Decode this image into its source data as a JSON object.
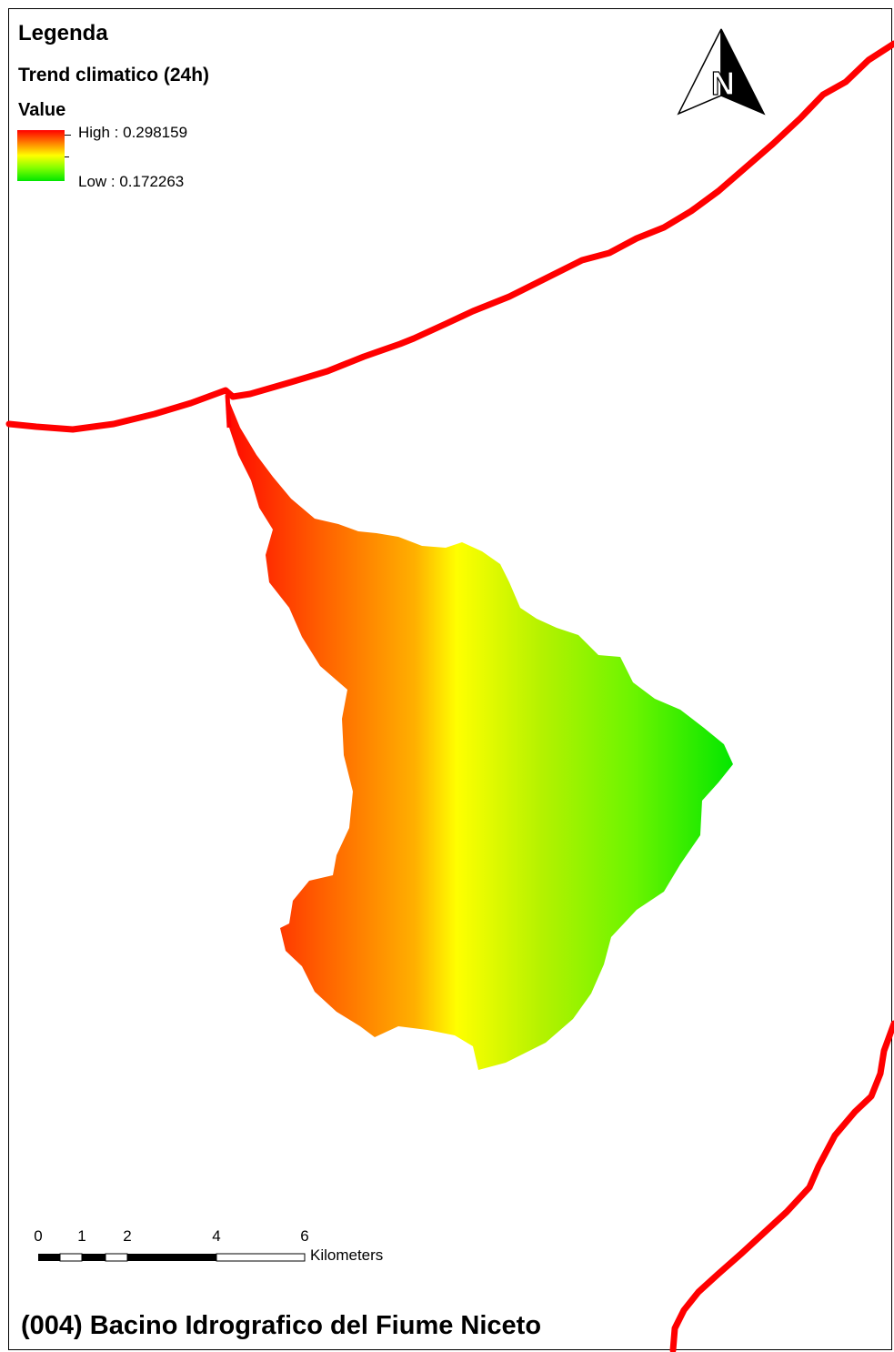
{
  "legend": {
    "title": "Legenda",
    "layer_name": "Trend climatico (24h)",
    "field_name": "Value",
    "high_label": "High : 0.298159",
    "low_label": "Low : 0.172263",
    "high_value": 0.298159,
    "low_value": 0.172263,
    "ramp_colors": [
      "#ff0000",
      "#ff7f00",
      "#ffff00",
      "#80ff00",
      "#00e600"
    ]
  },
  "north_arrow": {
    "letter": "N",
    "icon": "north-arrow-icon"
  },
  "scale_bar": {
    "ticks": [
      "0",
      "1",
      "2",
      "4",
      "6"
    ],
    "unit": "Kilometers"
  },
  "map_title": "(004) Bacino Idrografico del Fiume Niceto",
  "colors": {
    "boundary_line": "#ff0000",
    "frame": "#000000"
  }
}
